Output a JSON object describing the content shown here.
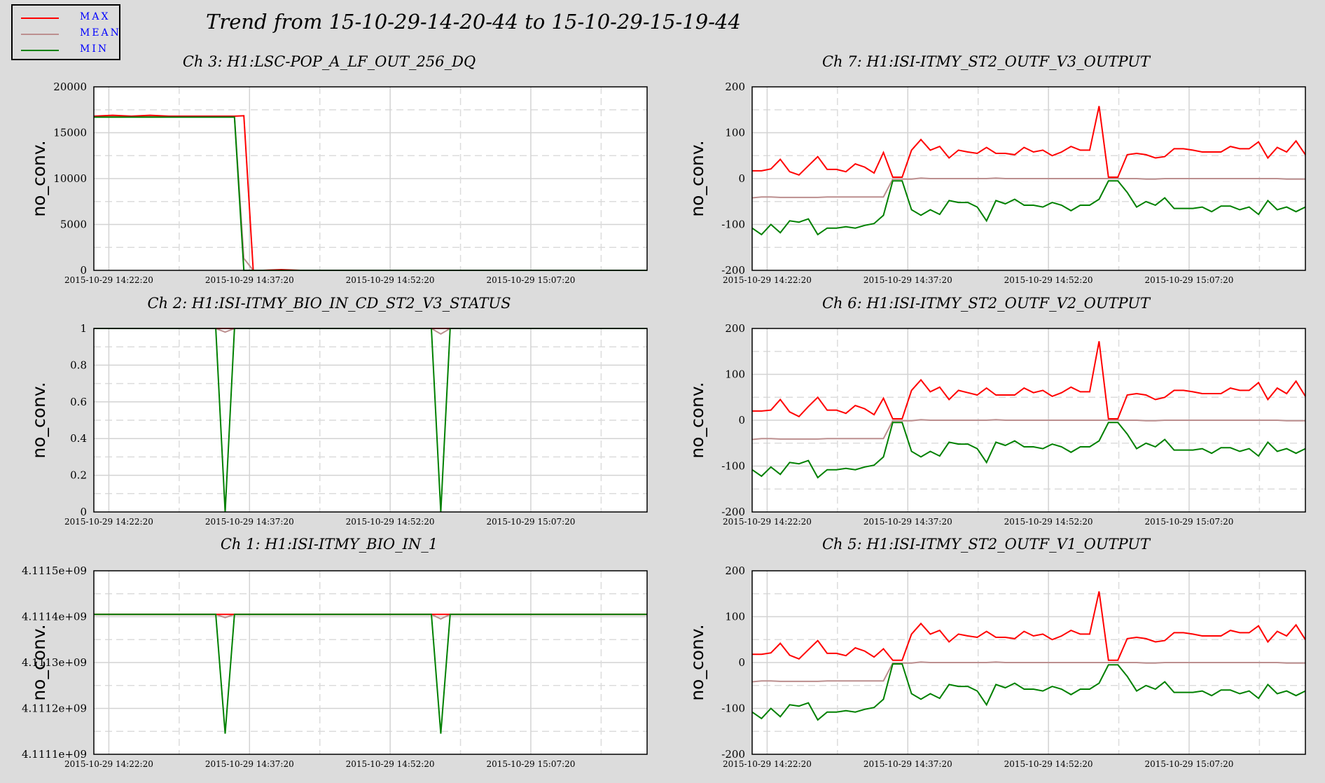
{
  "title": "Trend from 15-10-29-14-20-44 to 15-10-29-15-19-44",
  "legend": [
    {
      "label": "MAX",
      "color": "#ff0000"
    },
    {
      "label": "MEAN",
      "color": "#bc8f8f"
    },
    {
      "label": "MIN",
      "color": "#008000"
    }
  ],
  "colors": {
    "max": "#ff0000",
    "mean": "#bc8f8f",
    "min": "#008000",
    "background": "#dcdcdc",
    "plot_bg": "#ffffff",
    "grid": "#d3d3d3"
  },
  "chart_data": [
    {
      "type": "line",
      "title": "Ch 3: H1:LSC-POP_A_LF_OUT_256_DQ",
      "ylabel": "no_conv.",
      "ylim": [
        0,
        20000
      ],
      "yticks": [
        0,
        5000,
        10000,
        15000,
        20000
      ],
      "ytick_labels": [
        "0",
        "5000",
        "10000",
        "15000",
        "20000"
      ],
      "xlim": [
        0,
        59
      ],
      "xticks": [
        1.6,
        16.6,
        31.6,
        46.6
      ],
      "xtick_labels": [
        "2015-10-29 14:22:20",
        "2015-10-29 14:37:20",
        "2015-10-29 14:52:20",
        "2015-10-29 15:07:20"
      ],
      "x": [
        0,
        2,
        4,
        6,
        8,
        10,
        12,
        13,
        14,
        15,
        16,
        17,
        18,
        20,
        22,
        59
      ],
      "series": [
        {
          "name": "MAX",
          "values": [
            16800,
            16900,
            16800,
            16900,
            16800,
            16800,
            16800,
            16800,
            16800,
            16800,
            16850,
            0,
            0,
            80,
            0,
            0
          ]
        },
        {
          "name": "MEAN",
          "values": [
            16750,
            16750,
            16750,
            16750,
            16750,
            16750,
            16750,
            16750,
            16750,
            16750,
            1300,
            0,
            0,
            0,
            0,
            0
          ]
        },
        {
          "name": "MIN",
          "values": [
            16700,
            16700,
            16700,
            16700,
            16700,
            16700,
            16700,
            16700,
            16700,
            16700,
            0,
            0,
            0,
            0,
            0,
            0
          ]
        }
      ],
      "grid": true
    },
    {
      "type": "line",
      "title": "Ch 2: H1:ISI-ITMY_BIO_IN_CD_ST2_V3_STATUS",
      "ylabel": "no_conv.",
      "ylim": [
        0,
        1
      ],
      "yticks": [
        0,
        0.2,
        0.4,
        0.6,
        0.8,
        1
      ],
      "ytick_labels": [
        "0",
        "0.2",
        "0.4",
        "0.6",
        "0.8",
        "1"
      ],
      "xlim": [
        0,
        59
      ],
      "xticks": [
        1.6,
        16.6,
        31.6,
        46.6
      ],
      "xtick_labels": [
        "2015-10-29 14:22:20",
        "2015-10-29 14:37:20",
        "2015-10-29 14:52:20",
        "2015-10-29 15:07:20"
      ],
      "x": [
        0,
        13,
        14,
        15,
        36,
        37,
        38,
        59
      ],
      "series": [
        {
          "name": "MAX",
          "values": [
            1,
            1,
            1,
            1,
            1,
            1,
            1,
            1
          ]
        },
        {
          "name": "MEAN",
          "values": [
            1,
            1,
            0.98,
            1,
            1,
            0.97,
            1,
            1
          ]
        },
        {
          "name": "MIN",
          "values": [
            1,
            1,
            0,
            1,
            1,
            0,
            1,
            1
          ]
        }
      ],
      "grid": true
    },
    {
      "type": "line",
      "title": "Ch 1: H1:ISI-ITMY_BIO_IN_1",
      "ylabel": "no_conv.",
      "ylim": [
        4111100000,
        4111500000
      ],
      "yticks": [
        4111100000,
        4111200000,
        4111300000,
        4111400000,
        4111500000
      ],
      "ytick_labels": [
        "4.1111e+09",
        "4.1112e+09",
        "4.1113e+09",
        "4.1114e+09",
        "4.1115e+09"
      ],
      "xlim": [
        0,
        59
      ],
      "xticks": [
        1.6,
        16.6,
        31.6,
        46.6
      ],
      "xtick_labels": [
        "2015-10-29 14:22:20",
        "2015-10-29 14:37:20",
        "2015-10-29 14:52:20",
        "2015-10-29 15:07:20"
      ],
      "x": [
        0,
        13,
        14,
        15,
        36,
        37,
        38,
        59
      ],
      "series": [
        {
          "name": "MAX",
          "values": [
            4111405000,
            4111405000,
            4111405000,
            4111405000,
            4111405000,
            4111405000,
            4111405000,
            4111405000
          ]
        },
        {
          "name": "MEAN",
          "values": [
            4111405000,
            4111405000,
            4111398000,
            4111405000,
            4111405000,
            4111395000,
            4111405000,
            4111405000
          ]
        },
        {
          "name": "MIN",
          "values": [
            4111405000,
            4111405000,
            4111145000,
            4111405000,
            4111405000,
            4111145000,
            4111405000,
            4111405000
          ]
        }
      ],
      "grid": true
    },
    {
      "type": "line",
      "title": "Ch 7: H1:ISI-ITMY_ST2_OUTF_V3_OUTPUT",
      "ylabel": "no_conv.",
      "ylim": [
        -200,
        200
      ],
      "yticks": [
        -200,
        -100,
        0,
        100,
        200
      ],
      "ytick_labels": [
        "-200",
        "-100",
        "0",
        "100",
        "200"
      ],
      "xlim": [
        0,
        59
      ],
      "xticks": [
        1.6,
        16.6,
        31.6,
        46.6
      ],
      "xtick_labels": [
        "2015-10-29 14:22:20",
        "2015-10-29 14:37:20",
        "2015-10-29 14:52:20",
        "2015-10-29 15:07:20"
      ],
      "x": [
        0,
        1,
        2,
        3,
        4,
        5,
        6,
        7,
        8,
        9,
        10,
        11,
        12,
        13,
        14,
        15,
        16,
        17,
        18,
        19,
        20,
        21,
        22,
        23,
        24,
        25,
        26,
        27,
        28,
        29,
        30,
        31,
        32,
        33,
        34,
        35,
        36,
        37,
        38,
        39,
        40,
        41,
        42,
        43,
        44,
        45,
        46,
        47,
        48,
        49,
        50,
        51,
        52,
        53,
        54,
        55,
        56,
        57,
        58,
        59
      ],
      "series": [
        {
          "name": "MAX",
          "values": [
            17,
            17,
            21,
            42,
            15,
            8,
            28,
            48,
            20,
            20,
            15,
            32,
            25,
            12,
            57,
            3,
            3,
            62,
            85,
            62,
            70,
            45,
            62,
            58,
            55,
            68,
            55,
            55,
            52,
            68,
            58,
            62,
            50,
            58,
            70,
            62,
            62,
            158,
            3,
            3,
            52,
            55,
            52,
            45,
            48,
            65,
            65,
            62,
            58,
            58,
            58,
            70,
            65,
            65,
            80,
            45,
            68,
            58,
            82,
            52
          ]
        },
        {
          "name": "MEAN",
          "values": [
            -42,
            -40,
            -40,
            -41,
            -41,
            -41,
            -41,
            -41,
            -40,
            -40,
            -40,
            -40,
            -40,
            -40,
            -40,
            -1,
            -1,
            -1,
            1,
            0,
            0,
            0,
            0,
            0,
            0,
            0,
            1,
            0,
            0,
            0,
            0,
            0,
            0,
            0,
            0,
            0,
            0,
            0,
            0,
            0,
            0,
            0,
            -1,
            -1,
            0,
            0,
            0,
            0,
            0,
            0,
            0,
            0,
            0,
            0,
            0,
            0,
            0,
            -1,
            -1,
            -1
          ]
        },
        {
          "name": "MIN",
          "values": [
            -108,
            -122,
            -100,
            -118,
            -92,
            -95,
            -88,
            -122,
            -108,
            -108,
            -105,
            -108,
            -102,
            -98,
            -80,
            -5,
            -5,
            -68,
            -80,
            -68,
            -78,
            -48,
            -52,
            -52,
            -62,
            -92,
            -48,
            -55,
            -45,
            -58,
            -58,
            -62,
            -52,
            -58,
            -70,
            -58,
            -58,
            -45,
            -5,
            -5,
            -30,
            -62,
            -50,
            -58,
            -42,
            -65,
            -65,
            -65,
            -62,
            -72,
            -60,
            -60,
            -68,
            -62,
            -78,
            -48,
            -68,
            -62,
            -72,
            -62
          ]
        }
      ],
      "grid": true
    },
    {
      "type": "line",
      "title": "Ch 6: H1:ISI-ITMY_ST2_OUTF_V2_OUTPUT",
      "ylabel": "no_conv.",
      "ylim": [
        -200,
        200
      ],
      "yticks": [
        -200,
        -100,
        0,
        100,
        200
      ],
      "ytick_labels": [
        "-200",
        "-100",
        "0",
        "100",
        "200"
      ],
      "xlim": [
        0,
        59
      ],
      "xticks": [
        1.6,
        16.6,
        31.6,
        46.6
      ],
      "xtick_labels": [
        "2015-10-29 14:22:20",
        "2015-10-29 14:37:20",
        "2015-10-29 14:52:20",
        "2015-10-29 15:07:20"
      ],
      "x": [
        0,
        1,
        2,
        3,
        4,
        5,
        6,
        7,
        8,
        9,
        10,
        11,
        12,
        13,
        14,
        15,
        16,
        17,
        18,
        19,
        20,
        21,
        22,
        23,
        24,
        25,
        26,
        27,
        28,
        29,
        30,
        31,
        32,
        33,
        34,
        35,
        36,
        37,
        38,
        39,
        40,
        41,
        42,
        43,
        44,
        45,
        46,
        47,
        48,
        49,
        50,
        51,
        52,
        53,
        54,
        55,
        56,
        57,
        58,
        59
      ],
      "series": [
        {
          "name": "MAX",
          "values": [
            20,
            20,
            22,
            45,
            18,
            8,
            30,
            50,
            22,
            22,
            15,
            32,
            25,
            12,
            48,
            3,
            3,
            65,
            88,
            62,
            72,
            45,
            65,
            60,
            55,
            70,
            55,
            55,
            55,
            70,
            60,
            65,
            52,
            60,
            72,
            62,
            62,
            172,
            3,
            3,
            55,
            58,
            55,
            45,
            50,
            65,
            65,
            62,
            58,
            58,
            58,
            70,
            65,
            65,
            82,
            45,
            70,
            58,
            85,
            52
          ]
        },
        {
          "name": "MEAN",
          "values": [
            -42,
            -40,
            -40,
            -41,
            -41,
            -41,
            -41,
            -41,
            -40,
            -40,
            -40,
            -40,
            -40,
            -40,
            -40,
            -1,
            -1,
            -1,
            1,
            0,
            0,
            0,
            0,
            0,
            0,
            0,
            1,
            0,
            0,
            0,
            0,
            0,
            0,
            0,
            0,
            0,
            0,
            0,
            0,
            0,
            0,
            0,
            -1,
            -1,
            0,
            0,
            0,
            0,
            0,
            0,
            0,
            0,
            0,
            0,
            0,
            0,
            0,
            -1,
            -1,
            -1
          ]
        },
        {
          "name": "MIN",
          "values": [
            -108,
            -122,
            -102,
            -118,
            -92,
            -95,
            -88,
            -125,
            -108,
            -108,
            -105,
            -108,
            -102,
            -98,
            -80,
            -5,
            -5,
            -68,
            -80,
            -68,
            -78,
            -48,
            -52,
            -52,
            -62,
            -92,
            -48,
            -55,
            -45,
            -58,
            -58,
            -62,
            -52,
            -58,
            -70,
            -58,
            -58,
            -45,
            -5,
            -5,
            -30,
            -62,
            -50,
            -58,
            -42,
            -65,
            -65,
            -65,
            -62,
            -72,
            -60,
            -60,
            -68,
            -62,
            -78,
            -48,
            -68,
            -62,
            -72,
            -62
          ]
        }
      ],
      "grid": true
    },
    {
      "type": "line",
      "title": "Ch 5: H1:ISI-ITMY_ST2_OUTF_V1_OUTPUT",
      "ylabel": "no_conv.",
      "ylim": [
        -200,
        200
      ],
      "yticks": [
        -200,
        -100,
        0,
        100,
        200
      ],
      "ytick_labels": [
        "-200",
        "-100",
        "0",
        "100",
        "200"
      ],
      "xlim": [
        0,
        59
      ],
      "xticks": [
        1.6,
        16.6,
        31.6,
        46.6
      ],
      "xtick_labels": [
        "2015-10-29 14:22:20",
        "2015-10-29 14:37:20",
        "2015-10-29 14:52:20",
        "2015-10-29 15:07:20"
      ],
      "x": [
        0,
        1,
        2,
        3,
        4,
        5,
        6,
        7,
        8,
        9,
        10,
        11,
        12,
        13,
        14,
        15,
        16,
        17,
        18,
        19,
        20,
        21,
        22,
        23,
        24,
        25,
        26,
        27,
        28,
        29,
        30,
        31,
        32,
        33,
        34,
        35,
        36,
        37,
        38,
        39,
        40,
        41,
        42,
        43,
        44,
        45,
        46,
        47,
        48,
        49,
        50,
        51,
        52,
        53,
        54,
        55,
        56,
        57,
        58,
        59
      ],
      "series": [
        {
          "name": "MAX",
          "values": [
            18,
            18,
            21,
            42,
            16,
            8,
            28,
            48,
            20,
            20,
            15,
            32,
            25,
            12,
            30,
            5,
            5,
            62,
            85,
            62,
            70,
            45,
            62,
            58,
            55,
            68,
            55,
            55,
            52,
            68,
            58,
            62,
            50,
            58,
            70,
            62,
            62,
            155,
            5,
            5,
            52,
            55,
            52,
            45,
            48,
            65,
            65,
            62,
            58,
            58,
            58,
            70,
            65,
            65,
            80,
            45,
            68,
            58,
            82,
            50
          ]
        },
        {
          "name": "MEAN",
          "values": [
            -42,
            -40,
            -40,
            -41,
            -41,
            -41,
            -41,
            -41,
            -40,
            -40,
            -40,
            -40,
            -40,
            -40,
            -40,
            -1,
            -1,
            -1,
            1,
            0,
            0,
            0,
            0,
            0,
            0,
            0,
            1,
            0,
            0,
            0,
            0,
            0,
            0,
            0,
            0,
            0,
            0,
            0,
            0,
            0,
            0,
            0,
            -1,
            -1,
            0,
            0,
            0,
            0,
            0,
            0,
            0,
            0,
            0,
            0,
            0,
            0,
            0,
            -1,
            -1,
            -1
          ]
        },
        {
          "name": "MIN",
          "values": [
            -108,
            -122,
            -100,
            -118,
            -92,
            -95,
            -88,
            -125,
            -108,
            -108,
            -105,
            -108,
            -102,
            -98,
            -80,
            -3,
            -3,
            -68,
            -80,
            -68,
            -78,
            -48,
            -52,
            -52,
            -62,
            -92,
            -48,
            -55,
            -45,
            -58,
            -58,
            -62,
            -52,
            -58,
            -70,
            -58,
            -58,
            -45,
            -5,
            -5,
            -30,
            -62,
            -50,
            -58,
            -42,
            -65,
            -65,
            -65,
            -62,
            -72,
            -60,
            -60,
            -68,
            -62,
            -78,
            -48,
            -68,
            -62,
            -72,
            -62
          ]
        }
      ],
      "grid": true
    }
  ]
}
